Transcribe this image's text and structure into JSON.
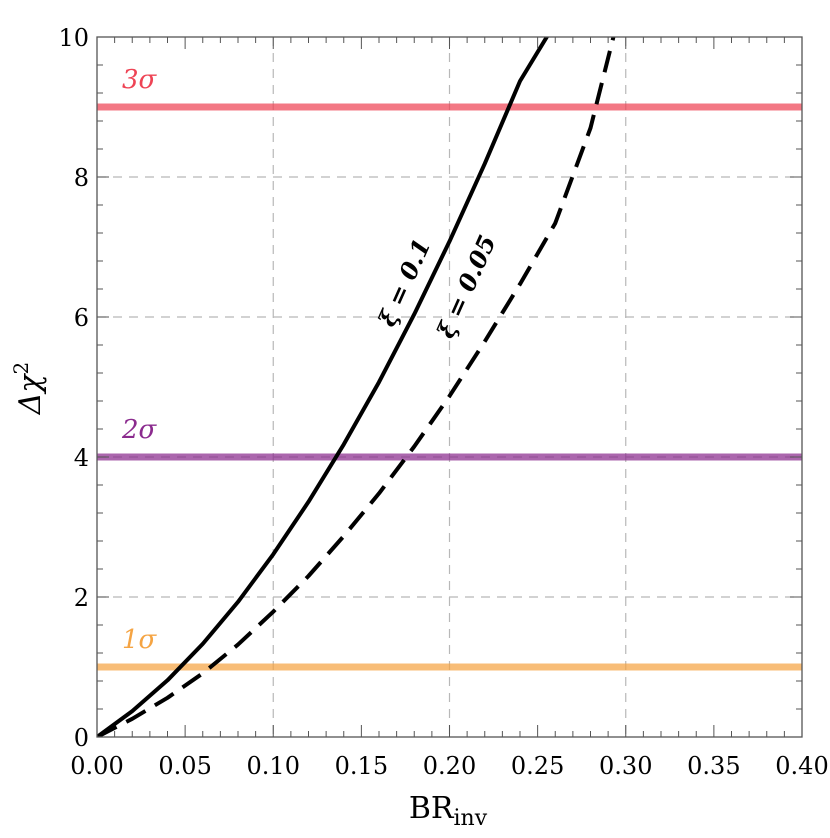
{
  "chart_data": {
    "type": "line",
    "xlabel": "BR",
    "xlabel_sub": "inv",
    "ylabel": "Δχ",
    "ylabel_sup": "2",
    "xlim": [
      0,
      0.4
    ],
    "ylim": [
      0,
      10
    ],
    "x_ticks": [
      0.0,
      0.05,
      0.1,
      0.15,
      0.2,
      0.25,
      0.3,
      0.35,
      0.4
    ],
    "x_tick_labels": [
      "0.00",
      "0.05",
      "0.10",
      "0.15",
      "0.20",
      "0.25",
      "0.30",
      "0.35",
      "0.40"
    ],
    "y_ticks": [
      0,
      2,
      4,
      6,
      8,
      10
    ],
    "y_tick_labels": [
      "0",
      "2",
      "4",
      "6",
      "8",
      "10"
    ],
    "grid": true,
    "series": [
      {
        "name": "ξ = 0.1",
        "style": "solid",
        "color": "#000000",
        "x": [
          0.0,
          0.02,
          0.04,
          0.06,
          0.08,
          0.1,
          0.12,
          0.14,
          0.16,
          0.18,
          0.2,
          0.22,
          0.24,
          0.26
        ],
        "y": [
          0.0,
          0.37,
          0.81,
          1.33,
          1.93,
          2.61,
          3.36,
          4.18,
          5.07,
          6.04,
          7.08,
          8.19,
          9.37,
          10.2
        ]
      },
      {
        "name": "ξ = 0.05",
        "style": "dashed",
        "color": "#000000",
        "x": [
          0.0,
          0.02,
          0.04,
          0.06,
          0.08,
          0.1,
          0.12,
          0.14,
          0.16,
          0.18,
          0.2,
          0.22,
          0.24,
          0.26,
          0.28,
          0.295
        ],
        "y": [
          0.0,
          0.26,
          0.56,
          0.91,
          1.32,
          1.79,
          2.3,
          2.87,
          3.48,
          4.15,
          4.87,
          5.65,
          6.47,
          7.34,
          8.7,
          10.2
        ]
      }
    ],
    "reference_lines": [
      {
        "y": 1,
        "label": "1σ",
        "color": "#f5a443"
      },
      {
        "y": 4,
        "label": "2σ",
        "color": "#8b2b8e"
      },
      {
        "y": 9,
        "label": "3σ",
        "color": "#ee4455"
      }
    ]
  }
}
